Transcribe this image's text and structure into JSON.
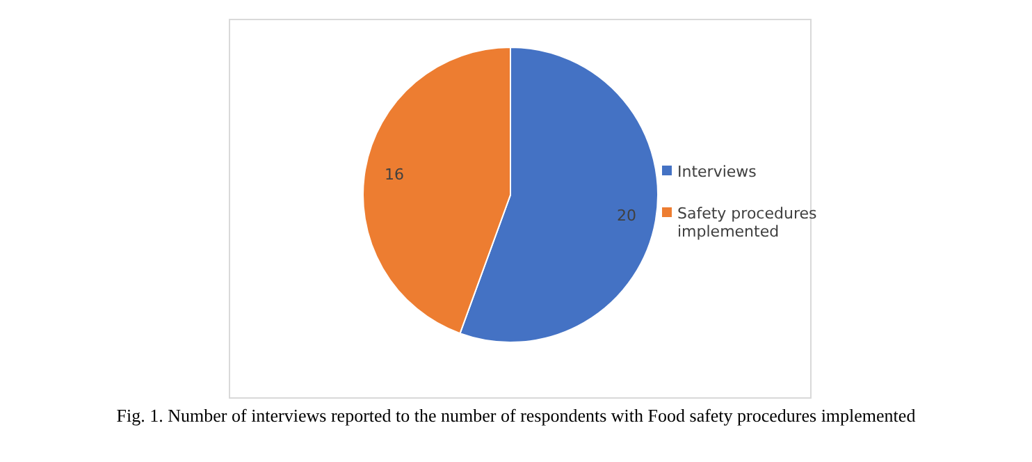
{
  "chart_data": {
    "type": "pie",
    "categories": [
      "Interviews",
      "Safety procedures implemented"
    ],
    "values": [
      20,
      16
    ],
    "colors": [
      "#4472c4",
      "#ed7d31"
    ],
    "data_labels": true,
    "legend": "right",
    "annotations": [
      "Fig. 1. Number of interviews reported to the number of respondents with Food safety procedures implemented"
    ]
  }
}
